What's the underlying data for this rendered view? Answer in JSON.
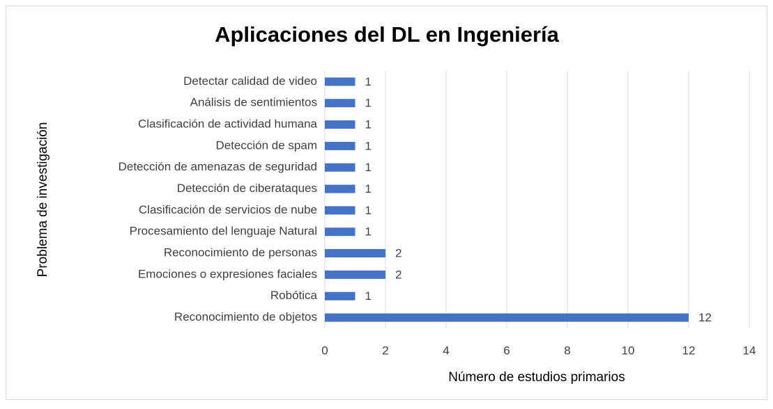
{
  "chart_data": {
    "type": "bar",
    "orientation": "horizontal",
    "title": "Aplicaciones del DL en Ingeniería",
    "xlabel": "Número de estudios primarios",
    "ylabel": "Problema de investigación",
    "categories": [
      "Detectar calidad de video",
      "Análisis de sentimientos",
      "Clasificación de actividad humana",
      "Detección de spam",
      "Detección de amenazas de seguridad",
      "Detección de ciberataques",
      "Clasificación de servicios de nube",
      "Procesamiento del lenguaje Natural",
      "Reconocimiento de personas",
      "Emociones o expresiones  faciales",
      "Robótica",
      "Reconocimiento de objetos"
    ],
    "values": [
      1,
      1,
      1,
      1,
      1,
      1,
      1,
      1,
      2,
      2,
      1,
      12
    ],
    "color": "#4472c4",
    "xlim": [
      0,
      14
    ],
    "xticks": [
      0,
      2,
      4,
      6,
      8,
      10,
      12,
      14
    ],
    "grid": true
  }
}
